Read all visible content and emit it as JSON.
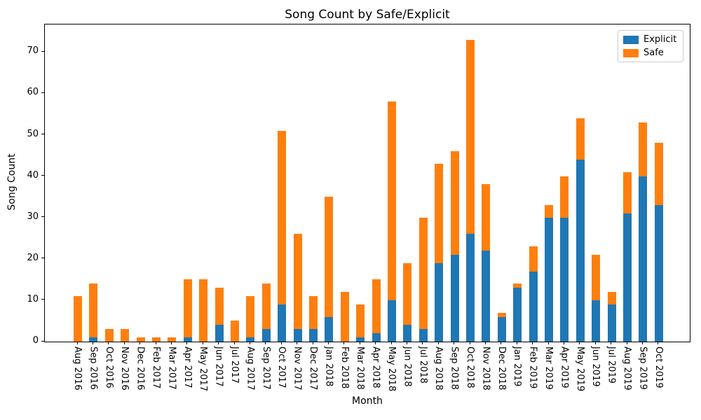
{
  "figure": {
    "title": "Song Count by Safe/Explicit",
    "xlabel": "Month",
    "ylabel": "Song Count"
  },
  "chart_data": {
    "type": "bar",
    "stacked": true,
    "title": "Song Count by Safe/Explicit",
    "xlabel": "Month",
    "ylabel": "Song Count",
    "grid": false,
    "legend_position": "upper right",
    "ylim": [
      0,
      76.65
    ],
    "yticks": [
      0,
      10,
      20,
      30,
      40,
      50,
      60,
      70
    ],
    "categories": [
      "Aug 2016",
      "Sep 2016",
      "Oct 2016",
      "Nov 2016",
      "Dec 2016",
      "Feb 2017",
      "Mar 2017",
      "Apr 2017",
      "May 2017",
      "Jun 2017",
      "Jul 2017",
      "Aug 2017",
      "Sep 2017",
      "Oct 2017",
      "Nov 2017",
      "Dec 2017",
      "Jan 2018",
      "Feb 2018",
      "Mar 2018",
      "Apr 2018",
      "May 2018",
      "Jun 2018",
      "Jul 2018",
      "Aug 2018",
      "Sep 2018",
      "Oct 2018",
      "Nov 2018",
      "Dec 2018",
      "Jan 2019",
      "Feb 2019",
      "Mar 2019",
      "Apr 2019",
      "May 2019",
      "Jun 2019",
      "Jul 2019",
      "Aug 2019",
      "Sep 2019",
      "Oct 2019"
    ],
    "series": [
      {
        "name": "Explicit",
        "color": "#1f77b4",
        "values": [
          0,
          1,
          0,
          0,
          0,
          0,
          0,
          1,
          0,
          4,
          0,
          1,
          3,
          9,
          3,
          3,
          6,
          0,
          1,
          2,
          10,
          4,
          3,
          19,
          21,
          26,
          22,
          6,
          13,
          17,
          30,
          30,
          44,
          10,
          9,
          31,
          40,
          33
        ]
      },
      {
        "name": "Safe",
        "color": "#ff7f0e",
        "values": [
          11,
          13,
          3,
          3,
          1,
          1,
          1,
          14,
          15,
          9,
          5,
          10,
          11,
          42,
          23,
          8,
          29,
          12,
          8,
          13,
          48,
          15,
          27,
          24,
          25,
          47,
          16,
          1,
          1,
          6,
          3,
          10,
          10,
          11,
          3,
          10,
          13,
          15
        ]
      }
    ],
    "totals": [
      11,
      14,
      3,
      3,
      1,
      1,
      1,
      15,
      15,
      13,
      5,
      11,
      14,
      51,
      26,
      11,
      35,
      12,
      9,
      15,
      58,
      19,
      30,
      43,
      46,
      73,
      38,
      7,
      14,
      23,
      33,
      40,
      54,
      21,
      12,
      41,
      53,
      48
    ]
  }
}
